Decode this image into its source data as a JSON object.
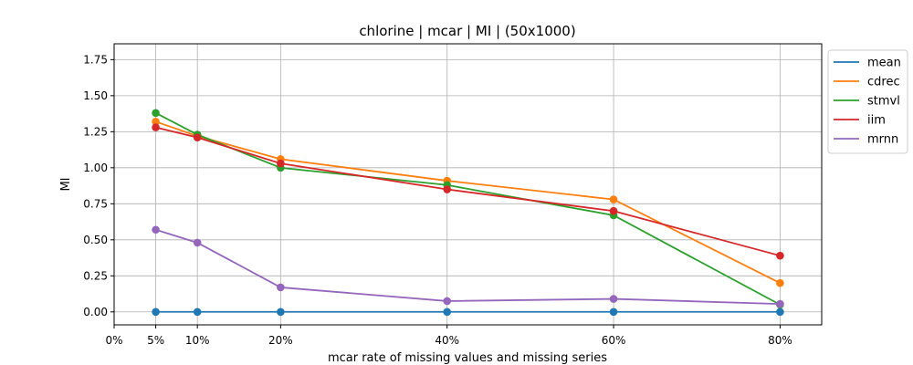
{
  "chart_data": {
    "type": "line",
    "title": "chlorine | mcar | MI | (50x1000)",
    "xlabel": "mcar rate of missing values and missing series",
    "ylabel": "MI",
    "x": [
      5,
      10,
      20,
      40,
      60,
      80
    ],
    "x_ticks": [
      0,
      5,
      10,
      20,
      40,
      60,
      80
    ],
    "x_tick_labels": [
      "0%",
      "5%",
      "10%",
      "20%",
      "40%",
      "60%",
      "80%"
    ],
    "xlim": [
      0,
      85
    ],
    "ylim": [
      -0.09,
      1.86
    ],
    "y_ticks": [
      0.0,
      0.25,
      0.5,
      0.75,
      1.0,
      1.25,
      1.5,
      1.75
    ],
    "y_tick_labels": [
      "0.00",
      "0.25",
      "0.50",
      "0.75",
      "1.00",
      "1.25",
      "1.50",
      "1.75"
    ],
    "grid": true,
    "legend_position": "outside-top-right",
    "series": [
      {
        "name": "mean",
        "color": "#1f77b4",
        "values": [
          0.0,
          0.0,
          0.0,
          0.0,
          0.0,
          0.0
        ]
      },
      {
        "name": "cdrec",
        "color": "#ff7f0e",
        "values": [
          1.32,
          1.22,
          1.06,
          0.91,
          0.78,
          0.2
        ]
      },
      {
        "name": "stmvl",
        "color": "#2ca02c",
        "values": [
          1.38,
          1.23,
          1.0,
          0.88,
          0.67,
          0.05
        ]
      },
      {
        "name": "iim",
        "color": "#d62728",
        "values": [
          1.28,
          1.21,
          1.03,
          0.85,
          0.7,
          0.39
        ]
      },
      {
        "name": "mrnn",
        "color": "#9467bd",
        "values": [
          0.57,
          0.48,
          0.17,
          0.075,
          0.09,
          0.055
        ]
      }
    ]
  }
}
